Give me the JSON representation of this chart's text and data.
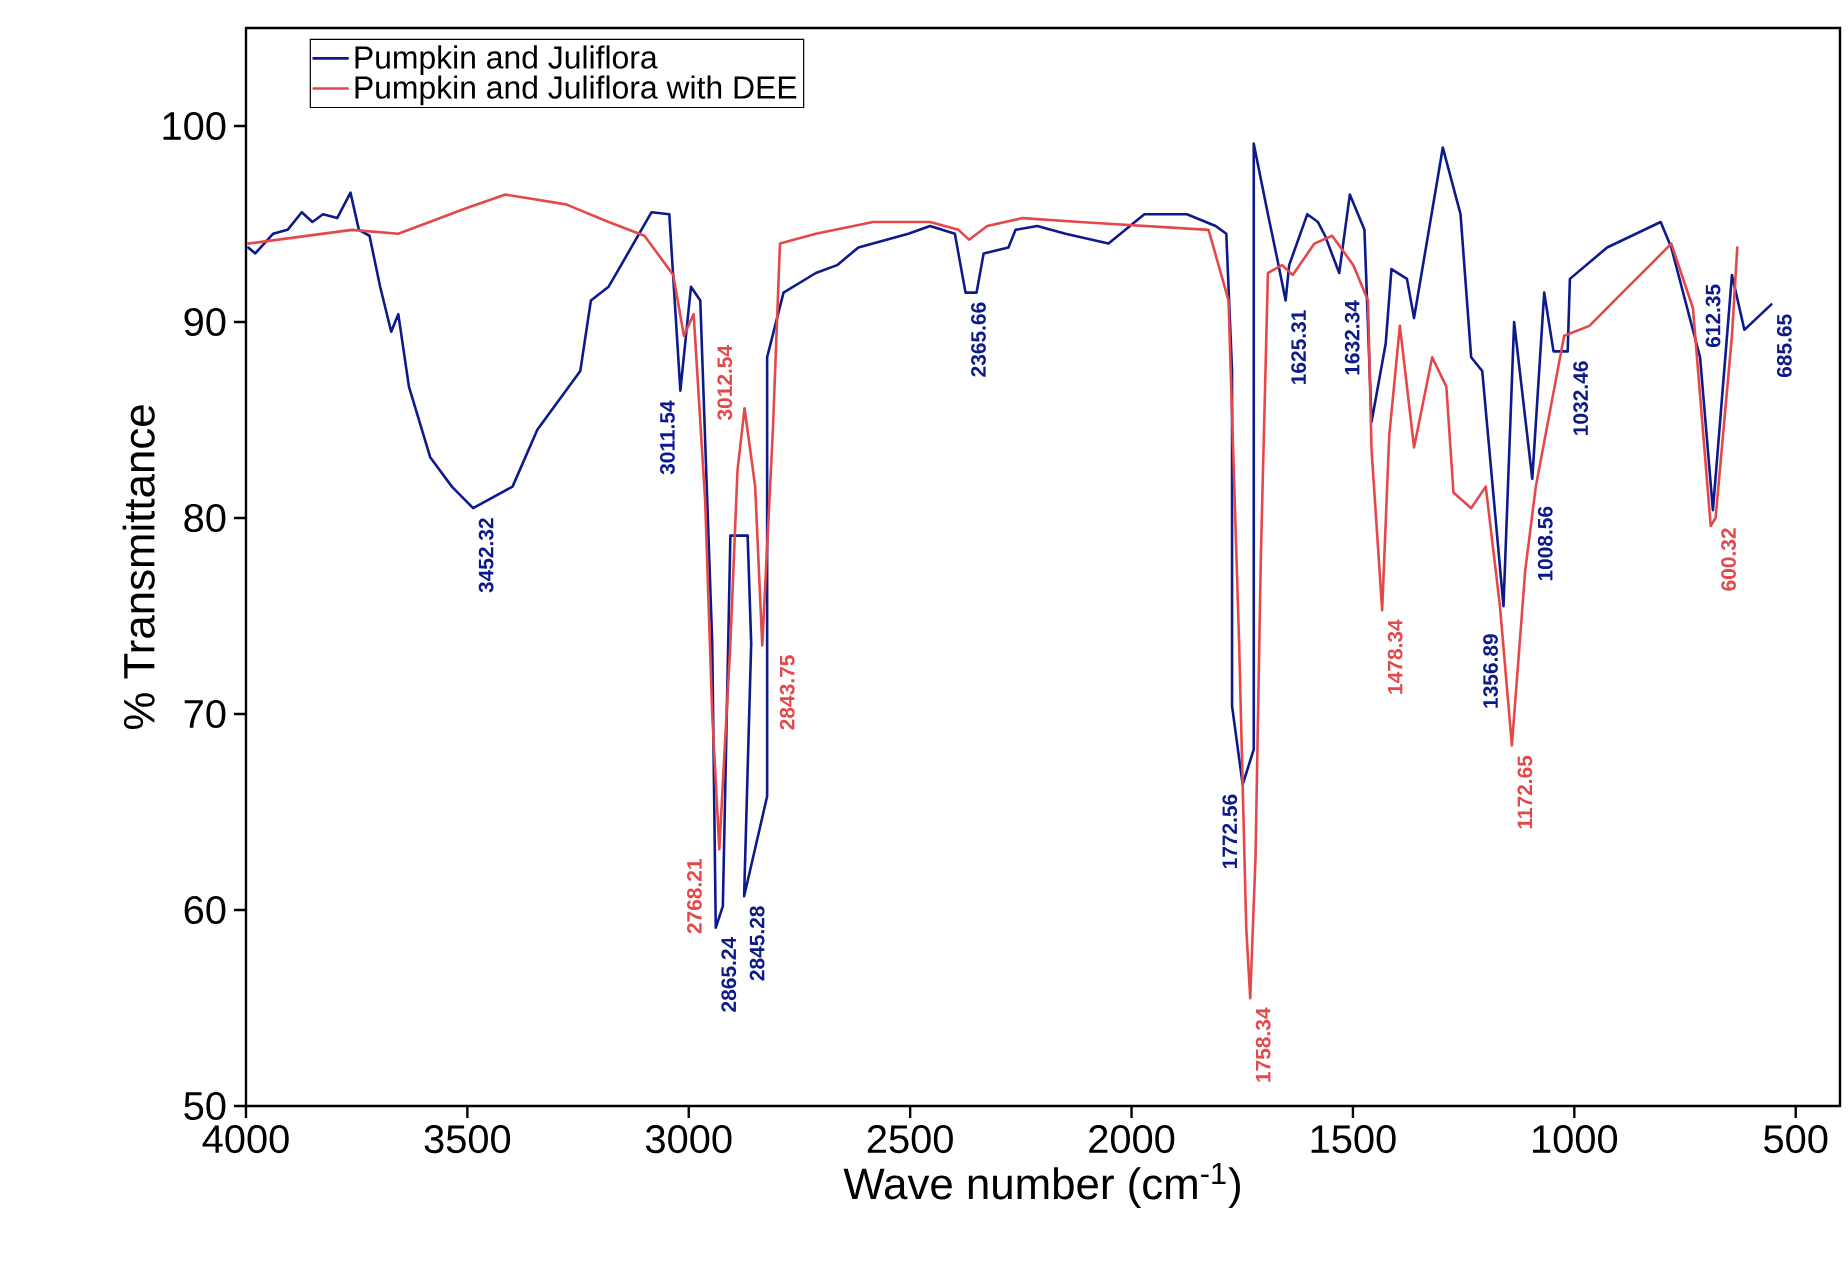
{
  "chart_data": {
    "type": "line",
    "xlabel": "Wave number (cm$^{-1}$)",
    "ylabel": "% Transmittance",
    "xlim": [
      4000,
      400
    ],
    "ylim": [
      50,
      105
    ],
    "xticks": [
      4000,
      3500,
      3000,
      2500,
      2000,
      1500,
      1000,
      500
    ],
    "yticks": [
      50,
      60,
      70,
      80,
      90,
      100
    ],
    "legend": "top left",
    "line_style": "solid",
    "series": [
      {
        "name": "Pumpkin and Juliflora",
        "color": "#0d1a8c",
        "x": [
          3995,
          3979,
          3939,
          3906,
          3874,
          3850,
          3826,
          3794,
          3764,
          3745,
          3721,
          3697,
          3672,
          3656,
          3632,
          3584,
          3535,
          3487,
          3398,
          3342,
          3245,
          3221,
          3181,
          3158,
          3084,
          3044,
          3019,
          2995,
          2974,
          2947,
          2939,
          2923,
          2906,
          2891,
          2867,
          2859,
          2875,
          2823,
          2823,
          2786,
          2713,
          2665,
          2617,
          2504,
          2455,
          2399,
          2375,
          2350,
          2334,
          2278,
          2262,
          2213,
          2149,
          2052,
          1971,
          1875,
          1810,
          1786,
          1773,
          1773,
          1749,
          1724,
          1724,
          1692,
          1668,
          1652,
          1644,
          1603,
          1579,
          1563,
          1531,
          1507,
          1474,
          1458,
          1426,
          1413,
          1378,
          1362,
          1297,
          1257,
          1233,
          1208,
          1160,
          1136,
          1095,
          1068,
          1047,
          1015,
          1010,
          926,
          805,
          781,
          716,
          687,
          644,
          616,
          555
        ],
        "values": [
          93.8,
          93.5,
          94.5,
          94.7,
          95.6,
          95.1,
          95.5,
          95.3,
          96.6,
          94.7,
          94.4,
          91.8,
          89.5,
          90.4,
          86.7,
          83.1,
          81.6,
          80.5,
          81.6,
          84.5,
          87.5,
          91.1,
          91.8,
          92.7,
          95.6,
          95.5,
          86.5,
          91.8,
          91.1,
          73.6,
          59.1,
          60.2,
          79.1,
          79.1,
          79.1,
          73.6,
          60.7,
          65.8,
          88.2,
          91.5,
          92.5,
          92.9,
          93.8,
          94.5,
          94.9,
          94.5,
          91.5,
          91.5,
          93.5,
          93.8,
          94.7,
          94.9,
          94.5,
          94.0,
          95.5,
          95.5,
          94.9,
          94.5,
          87.5,
          70.4,
          66.4,
          68.2,
          99.1,
          95.5,
          92.9,
          91.1,
          92.9,
          95.5,
          95.1,
          94.4,
          92.5,
          96.5,
          94.7,
          84.9,
          88.9,
          92.7,
          92.2,
          90.2,
          98.9,
          95.5,
          88.2,
          87.5,
          75.5,
          90.0,
          82.0,
          91.5,
          88.5,
          88.5,
          92.2,
          93.8,
          95.1,
          93.8,
          88.2,
          80.4,
          92.4,
          89.6,
          90.9
        ]
      },
      {
        "name": "Pumpkin and Juliflora with DEE",
        "color": "#e5484a",
        "x": [
          3995,
          3761,
          3656,
          3503,
          3414,
          3277,
          3181,
          3100,
          3035,
          3011,
          2989,
          2963,
          2947,
          2931,
          2906,
          2890,
          2874,
          2850,
          2834,
          2810,
          2794,
          2713,
          2584,
          2455,
          2391,
          2367,
          2326,
          2246,
          2117,
          1826,
          1781,
          1757,
          1741,
          1732,
          1720,
          1708,
          1692,
          1660,
          1636,
          1587,
          1547,
          1499,
          1466,
          1458,
          1434,
          1418,
          1394,
          1362,
          1321,
          1289,
          1273,
          1233,
          1200,
          1168,
          1141,
          1111,
          1087,
          1023,
          966,
          878,
          829,
          781,
          732,
          692,
          681,
          644,
          632
        ],
        "values": [
          94.0,
          94.7,
          94.5,
          95.8,
          96.5,
          96.0,
          95.1,
          94.4,
          92.4,
          89.3,
          90.4,
          80.9,
          70.0,
          63.1,
          73.6,
          82.4,
          85.6,
          81.6,
          73.5,
          84.5,
          94.0,
          94.5,
          95.1,
          95.1,
          94.7,
          94.2,
          94.9,
          95.3,
          95.1,
          94.7,
          91.1,
          73.6,
          59.1,
          55.5,
          62.7,
          78.0,
          92.5,
          92.9,
          92.4,
          94.0,
          94.4,
          92.9,
          91.1,
          83.5,
          75.3,
          84.2,
          89.8,
          83.6,
          88.2,
          86.7,
          81.3,
          80.5,
          81.6,
          75.5,
          68.4,
          77.3,
          81.6,
          89.3,
          89.8,
          91.8,
          92.9,
          94.0,
          90.7,
          79.6,
          80.0,
          89.3,
          93.8
        ]
      }
    ],
    "annotations": [
      {
        "text": "3452.32",
        "x": 3487,
        "y": 80.5
      },
      {
        "text": "3011.54",
        "x": 3019,
        "y": 86.5
      },
      {
        "text": "3012.54",
        "x": 3011,
        "y": 89.3
      },
      {
        "text": "2768.21",
        "x": 2931,
        "y": 63.1
      },
      {
        "text": "2865.24",
        "x": 2939,
        "y": 59.1
      },
      {
        "text": "2845.28",
        "x": 2875,
        "y": 60.7
      },
      {
        "text": "2843.75",
        "x": 2834,
        "y": 73.5
      },
      {
        "text": "2365.66",
        "x": 2375,
        "y": 91.5
      },
      {
        "text": "1758.34",
        "x": 1732,
        "y": 55.5
      },
      {
        "text": "1772.56",
        "x": 1749,
        "y": 66.4
      },
      {
        "text": "1625.31",
        "x": 1652,
        "y": 91.1
      },
      {
        "text": "1632.34",
        "x": 1531,
        "y": 92.5
      },
      {
        "text": "1478.34",
        "x": 1434,
        "y": 75.3
      },
      {
        "text": "1356.89",
        "x": 1160,
        "y": 75.5
      },
      {
        "text": "1172.65",
        "x": 1141,
        "y": 68.4
      },
      {
        "text": "1008.56",
        "x": 1095,
        "y": 82.0
      },
      {
        "text": "1032.46",
        "x": 1015,
        "y": 88.5
      },
      {
        "text": "612.35",
        "x": 716,
        "y": 88.2
      },
      {
        "text": "600.32",
        "x": 681,
        "y": 80.0
      },
      {
        "text": "685.65",
        "x": 555,
        "y": 90.9
      }
    ]
  }
}
